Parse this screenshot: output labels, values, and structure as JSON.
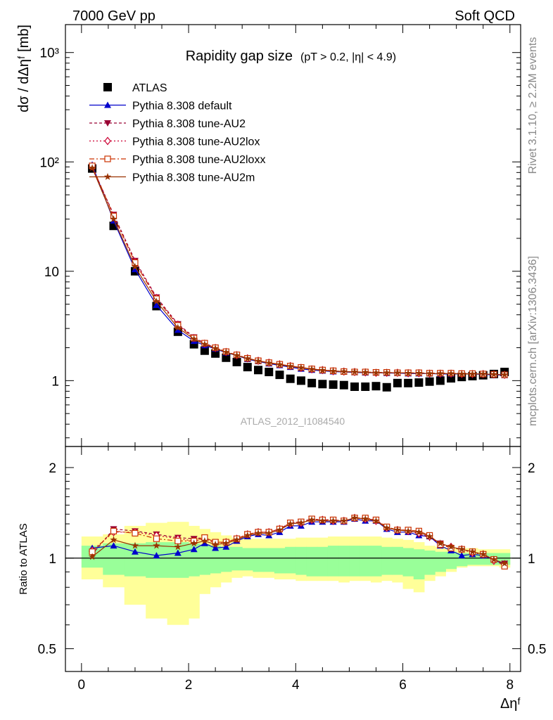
{
  "header": {
    "left": "7000 GeV pp",
    "right": "Soft QCD"
  },
  "side_text": {
    "top": "Rivet 3.1.10, ≥ 2.2M events",
    "bottom": "mcplots.cern.ch [arXiv:1306.3436]"
  },
  "watermark": "ATLAS_2012_I1084540",
  "colors": {
    "atlas": "#000000",
    "default": "#0000cc",
    "au2": "#990033",
    "au2lox": "#cc0033",
    "au2loxx": "#cc3300",
    "au2m": "#993300",
    "band_inner": "#99ff99",
    "band_outer": "#ffff99"
  },
  "chart_data": [
    {
      "type": "scatter",
      "title_main": "Rapidity gap size",
      "title_sub": "(pT > 0.2, |η| < 4.9)",
      "ylabel": "dσ / dΔηᶠ [mb]",
      "yscale": "log",
      "ylim": [
        0.25,
        1800
      ],
      "xlim": [
        -0.3,
        8.2
      ],
      "x_ticks": [
        "0",
        "2",
        "4",
        "6",
        "8"
      ],
      "y_ticks": [
        "1",
        "10",
        "10²",
        "10³"
      ],
      "x": [
        0.2,
        0.6,
        1.0,
        1.4,
        1.8,
        2.1,
        2.3,
        2.5,
        2.7,
        2.9,
        3.1,
        3.3,
        3.5,
        3.7,
        3.9,
        4.1,
        4.3,
        4.5,
        4.7,
        4.9,
        5.1,
        5.3,
        5.5,
        5.7,
        5.9,
        6.1,
        6.3,
        6.5,
        6.7,
        6.9,
        7.1,
        7.3,
        7.5,
        7.7,
        7.9
      ],
      "series": [
        {
          "name": "ATLAS",
          "marker": "square",
          "values": [
            87,
            26,
            10,
            4.8,
            2.8,
            2.15,
            1.88,
            1.77,
            1.62,
            1.48,
            1.33,
            1.25,
            1.2,
            1.13,
            1.04,
            1.0,
            0.95,
            0.93,
            0.92,
            0.91,
            0.88,
            0.88,
            0.89,
            0.87,
            0.95,
            0.95,
            0.96,
            0.98,
            1.0,
            1.05,
            1.08,
            1.1,
            1.12,
            1.15,
            1.2
          ]
        },
        {
          "name": "Pythia 8.308 default",
          "marker": "triangle-up",
          "values": [
            94,
            29,
            10.4,
            4.9,
            2.9,
            2.3,
            2.1,
            1.95,
            1.8,
            1.7,
            1.57,
            1.5,
            1.43,
            1.38,
            1.33,
            1.28,
            1.25,
            1.23,
            1.21,
            1.2,
            1.19,
            1.18,
            1.18,
            1.17,
            1.17,
            1.16,
            1.16,
            1.16,
            1.15,
            1.15,
            1.15,
            1.15,
            1.14,
            1.13,
            1.12
          ]
        },
        {
          "name": "Pythia 8.308 tune-AU2",
          "marker": "triangle-down",
          "values": [
            90,
            33,
            12.5,
            5.8,
            3.3,
            2.5,
            2.2,
            2.0,
            1.83,
            1.71,
            1.6,
            1.52,
            1.46,
            1.41,
            1.36,
            1.32,
            1.28,
            1.25,
            1.23,
            1.21,
            1.2,
            1.19,
            1.19,
            1.18,
            1.18,
            1.18,
            1.17,
            1.17,
            1.16,
            1.16,
            1.16,
            1.15,
            1.15,
            1.14,
            1.13
          ]
        },
        {
          "name": "Pythia 8.308 tune-AU2lox",
          "marker": "diamond-open",
          "values": [
            91,
            32,
            12.2,
            5.7,
            3.25,
            2.45,
            2.18,
            1.99,
            1.83,
            1.71,
            1.6,
            1.52,
            1.46,
            1.41,
            1.36,
            1.31,
            1.27,
            1.25,
            1.22,
            1.21,
            1.2,
            1.19,
            1.18,
            1.18,
            1.18,
            1.17,
            1.17,
            1.16,
            1.16,
            1.16,
            1.15,
            1.15,
            1.15,
            1.14,
            1.13
          ]
        },
        {
          "name": "Pythia 8.308 tune-AU2loxx",
          "marker": "square-open",
          "values": [
            92,
            32,
            12.0,
            5.6,
            3.2,
            2.45,
            2.2,
            2.0,
            1.84,
            1.72,
            1.6,
            1.52,
            1.46,
            1.41,
            1.36,
            1.32,
            1.28,
            1.25,
            1.23,
            1.21,
            1.2,
            1.2,
            1.19,
            1.19,
            1.18,
            1.18,
            1.18,
            1.17,
            1.17,
            1.17,
            1.16,
            1.16,
            1.15,
            1.14,
            1.13
          ]
        },
        {
          "name": "Pythia 8.308 tune-AU2m",
          "marker": "star",
          "values": [
            88,
            30,
            11.0,
            5.3,
            3.05,
            2.4,
            2.15,
            1.97,
            1.82,
            1.7,
            1.59,
            1.51,
            1.45,
            1.4,
            1.35,
            1.31,
            1.27,
            1.24,
            1.22,
            1.21,
            1.2,
            1.19,
            1.18,
            1.18,
            1.18,
            1.17,
            1.17,
            1.16,
            1.16,
            1.16,
            1.15,
            1.15,
            1.15,
            1.14,
            1.13
          ]
        }
      ]
    },
    {
      "type": "line",
      "ylabel": "Ratio to ATLAS",
      "yscale": "log",
      "ylim": [
        0.42,
        2.35
      ],
      "xlim": [
        -0.3,
        8.2
      ],
      "xlabel": "Δηᶠ",
      "x_ticks": [
        "0",
        "2",
        "4",
        "6",
        "8"
      ],
      "y_ticks": [
        "0.5",
        "1",
        "2"
      ],
      "x": [
        0.2,
        0.6,
        1.0,
        1.4,
        1.8,
        2.1,
        2.3,
        2.5,
        2.7,
        2.9,
        3.1,
        3.3,
        3.5,
        3.7,
        3.9,
        4.1,
        4.3,
        4.5,
        4.7,
        4.9,
        5.1,
        5.3,
        5.5,
        5.7,
        5.9,
        6.1,
        6.3,
        6.5,
        6.7,
        6.9,
        7.1,
        7.3,
        7.5,
        7.7,
        7.9
      ],
      "bands": {
        "edges": [
          0.0,
          0.4,
          0.8,
          1.2,
          1.6,
          2.0,
          2.2,
          2.4,
          2.6,
          2.8,
          3.0,
          3.2,
          3.4,
          3.6,
          3.8,
          4.0,
          4.2,
          4.4,
          4.6,
          4.8,
          5.0,
          5.2,
          5.4,
          5.6,
          5.8,
          6.0,
          6.2,
          6.4,
          6.6,
          6.8,
          7.0,
          7.2,
          7.4,
          7.6,
          7.8,
          8.0
        ],
        "inner_lo": [
          0.93,
          0.88,
          0.87,
          0.86,
          0.86,
          0.87,
          0.88,
          0.89,
          0.9,
          0.91,
          0.91,
          0.9,
          0.9,
          0.89,
          0.89,
          0.88,
          0.87,
          0.87,
          0.87,
          0.87,
          0.87,
          0.87,
          0.87,
          0.88,
          0.88,
          0.87,
          0.85,
          0.88,
          0.9,
          0.92,
          0.94,
          0.95,
          0.95,
          0.95,
          0.95
        ],
        "inner_hi": [
          1.1,
          1.12,
          1.12,
          1.13,
          1.13,
          1.12,
          1.11,
          1.1,
          1.09,
          1.09,
          1.08,
          1.08,
          1.08,
          1.08,
          1.09,
          1.09,
          1.09,
          1.09,
          1.1,
          1.1,
          1.1,
          1.1,
          1.1,
          1.09,
          1.09,
          1.08,
          1.07,
          1.06,
          1.05,
          1.05,
          1.04,
          1.04,
          1.04,
          1.04,
          1.04
        ],
        "outer_lo": [
          0.85,
          0.8,
          0.7,
          0.63,
          0.6,
          0.63,
          0.76,
          0.8,
          0.83,
          0.86,
          0.87,
          0.86,
          0.86,
          0.85,
          0.85,
          0.84,
          0.84,
          0.84,
          0.84,
          0.83,
          0.84,
          0.84,
          0.83,
          0.84,
          0.83,
          0.79,
          0.77,
          0.84,
          0.87,
          0.9,
          0.93,
          0.94,
          0.94,
          0.94,
          0.93
        ],
        "outer_hi": [
          1.18,
          1.2,
          1.28,
          1.31,
          1.32,
          1.28,
          1.25,
          1.22,
          1.19,
          1.17,
          1.16,
          1.16,
          1.16,
          1.16,
          1.16,
          1.17,
          1.17,
          1.17,
          1.18,
          1.18,
          1.18,
          1.18,
          1.18,
          1.17,
          1.16,
          1.15,
          1.13,
          1.1,
          1.09,
          1.08,
          1.08,
          1.08,
          1.07,
          1.07,
          1.07
        ]
      },
      "series": [
        {
          "name": "Pythia 8.308 default",
          "values": [
            1.08,
            1.1,
            1.05,
            1.02,
            1.04,
            1.07,
            1.12,
            1.08,
            1.09,
            1.14,
            1.18,
            1.2,
            1.19,
            1.22,
            1.28,
            1.28,
            1.32,
            1.32,
            1.32,
            1.32,
            1.35,
            1.33,
            1.33,
            1.25,
            1.22,
            1.22,
            1.19,
            1.18,
            1.1,
            1.06,
            1.02,
            1.03,
            1.02,
            0.99,
            0.95
          ]
        },
        {
          "name": "Pythia 8.308 tune-AU2",
          "values": [
            1.03,
            1.25,
            1.23,
            1.2,
            1.17,
            1.16,
            1.17,
            1.13,
            1.13,
            1.16,
            1.2,
            1.22,
            1.22,
            1.25,
            1.31,
            1.32,
            1.35,
            1.34,
            1.34,
            1.33,
            1.36,
            1.35,
            1.34,
            1.26,
            1.24,
            1.24,
            1.2,
            1.17,
            1.12,
            1.08,
            1.07,
            1.05,
            1.03,
            0.99,
            0.96
          ]
        },
        {
          "name": "Pythia 8.308 tune-AU2lox",
          "values": [
            1.06,
            1.22,
            1.22,
            1.19,
            1.16,
            1.14,
            1.16,
            1.12,
            1.13,
            1.16,
            1.2,
            1.22,
            1.22,
            1.25,
            1.3,
            1.31,
            1.34,
            1.34,
            1.33,
            1.33,
            1.36,
            1.35,
            1.33,
            1.26,
            1.24,
            1.23,
            1.21,
            1.18,
            1.11,
            1.09,
            1.07,
            1.04,
            1.03,
            0.98,
            0.95
          ]
        },
        {
          "name": "Pythia 8.308 tune-AU2loxx",
          "values": [
            1.05,
            1.23,
            1.21,
            1.16,
            1.14,
            1.14,
            1.17,
            1.13,
            1.13,
            1.16,
            1.2,
            1.22,
            1.22,
            1.25,
            1.31,
            1.32,
            1.35,
            1.34,
            1.34,
            1.33,
            1.36,
            1.36,
            1.34,
            1.27,
            1.24,
            1.24,
            1.23,
            1.19,
            1.11,
            1.08,
            1.07,
            1.05,
            1.03,
            0.99,
            0.94
          ]
        },
        {
          "name": "Pythia 8.308 tune-AU2m",
          "values": [
            1.01,
            1.15,
            1.1,
            1.1,
            1.09,
            1.12,
            1.14,
            1.11,
            1.12,
            1.15,
            1.19,
            1.21,
            1.21,
            1.24,
            1.3,
            1.31,
            1.34,
            1.33,
            1.33,
            1.33,
            1.36,
            1.35,
            1.33,
            1.26,
            1.24,
            1.23,
            1.22,
            1.18,
            1.12,
            1.09,
            1.07,
            1.05,
            1.03,
            0.99,
            0.96
          ]
        }
      ]
    }
  ]
}
